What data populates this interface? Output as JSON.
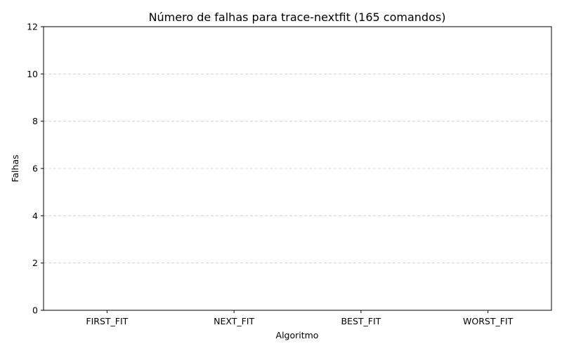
{
  "chart_data": {
    "type": "bar",
    "title": "Número de falhas para trace-nextfit (165 comandos)",
    "xlabel": "Algoritmo",
    "ylabel": "Falhas",
    "categories": [
      "FIRST_FIT",
      "NEXT_FIT",
      "BEST_FIT",
      "WORST_FIT"
    ],
    "values": [
      0,
      0,
      0,
      0
    ],
    "ylim": [
      0,
      12
    ],
    "yticks": [
      0,
      2,
      4,
      6,
      8,
      10,
      12
    ],
    "grid": "y-dashed",
    "bar_color": "#1f77b4"
  }
}
